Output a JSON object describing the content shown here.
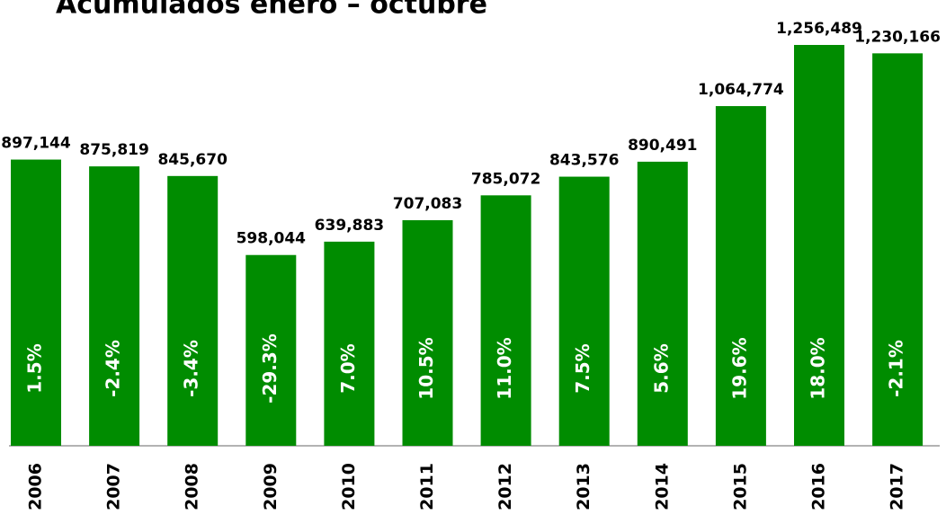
{
  "chart_data": {
    "type": "bar",
    "title": "Acumulados enero – octubre",
    "categories": [
      "2006",
      "2007",
      "2008",
      "2009",
      "2010",
      "2011",
      "2012",
      "2013",
      "2014",
      "2015",
      "2016",
      "2017"
    ],
    "values": [
      897144,
      875819,
      845670,
      598044,
      639883,
      707083,
      785072,
      843576,
      890491,
      1064774,
      1256489,
      1230166
    ],
    "value_labels": [
      "897,144",
      "875,819",
      "845,670",
      "598,044",
      "639,883",
      "707,083",
      "785,072",
      "843,576",
      "890,491",
      "1,064,774",
      "1,256,489",
      "1,230,166"
    ],
    "annotations": [
      "1.5%",
      "-2.4%",
      "-3.4%",
      "-29.3%",
      "7.0%",
      "10.5%",
      "11.0%",
      "7.5%",
      "5.6%",
      "19.6%",
      "18.0%",
      "-2.1%"
    ],
    "color": "#008c00"
  }
}
